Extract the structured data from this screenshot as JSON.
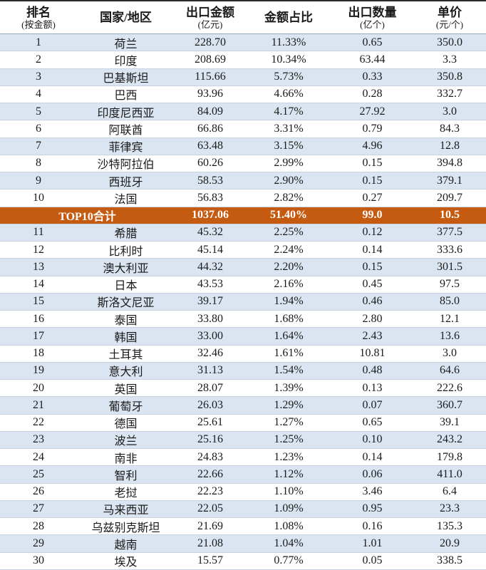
{
  "table": {
    "header": [
      {
        "title": "排名",
        "unit": "(按金额)"
      },
      {
        "title": "国家/地区"
      },
      {
        "title": "出口金额",
        "unit": "(亿元)"
      },
      {
        "title": "金额占比"
      },
      {
        "title": "出口数量",
        "unit": "(亿个)"
      },
      {
        "title": "单价",
        "unit": "(元/个)"
      }
    ],
    "rows": [
      [
        "1",
        "荷兰",
        "228.70",
        "11.33%",
        "0.65",
        "350.0"
      ],
      [
        "2",
        "印度",
        "208.69",
        "10.34%",
        "63.44",
        "3.3"
      ],
      [
        "3",
        "巴基斯坦",
        "115.66",
        "5.73%",
        "0.33",
        "350.8"
      ],
      [
        "4",
        "巴西",
        "93.96",
        "4.66%",
        "0.28",
        "332.7"
      ],
      [
        "5",
        "印度尼西亚",
        "84.09",
        "4.17%",
        "27.92",
        "3.0"
      ],
      [
        "6",
        "阿联酋",
        "66.86",
        "3.31%",
        "0.79",
        "84.3"
      ],
      [
        "7",
        "菲律宾",
        "63.48",
        "3.15%",
        "4.96",
        "12.8"
      ],
      [
        "8",
        "沙特阿拉伯",
        "60.26",
        "2.99%",
        "0.15",
        "394.8"
      ],
      [
        "9",
        "西班牙",
        "58.53",
        "2.90%",
        "0.15",
        "379.1"
      ],
      [
        "10",
        "法国",
        "56.83",
        "2.82%",
        "0.27",
        "209.7"
      ],
      [
        "11",
        "希腊",
        "45.32",
        "2.25%",
        "0.12",
        "377.5"
      ],
      [
        "12",
        "比利时",
        "45.14",
        "2.24%",
        "0.14",
        "333.6"
      ],
      [
        "13",
        "澳大利亚",
        "44.32",
        "2.20%",
        "0.15",
        "301.5"
      ],
      [
        "14",
        "日本",
        "43.53",
        "2.16%",
        "0.45",
        "97.5"
      ],
      [
        "15",
        "斯洛文尼亚",
        "39.17",
        "1.94%",
        "0.46",
        "85.0"
      ],
      [
        "16",
        "泰国",
        "33.80",
        "1.68%",
        "2.80",
        "12.1"
      ],
      [
        "17",
        "韩国",
        "33.00",
        "1.64%",
        "2.43",
        "13.6"
      ],
      [
        "18",
        "土耳其",
        "32.46",
        "1.61%",
        "10.81",
        "3.0"
      ],
      [
        "19",
        "意大利",
        "31.13",
        "1.54%",
        "0.48",
        "64.6"
      ],
      [
        "20",
        "英国",
        "28.07",
        "1.39%",
        "0.13",
        "222.6"
      ],
      [
        "21",
        "葡萄牙",
        "26.03",
        "1.29%",
        "0.07",
        "360.7"
      ],
      [
        "22",
        "德国",
        "25.61",
        "1.27%",
        "0.65",
        "39.1"
      ],
      [
        "23",
        "波兰",
        "25.16",
        "1.25%",
        "0.10",
        "243.2"
      ],
      [
        "24",
        "南非",
        "24.83",
        "1.23%",
        "0.14",
        "179.8"
      ],
      [
        "25",
        "智利",
        "22.66",
        "1.12%",
        "0.06",
        "411.0"
      ],
      [
        "26",
        "老挝",
        "22.23",
        "1.10%",
        "3.46",
        "6.4"
      ],
      [
        "27",
        "马来西亚",
        "22.05",
        "1.09%",
        "0.95",
        "23.3"
      ],
      [
        "28",
        "乌兹别克斯坦",
        "21.69",
        "1.08%",
        "0.16",
        "135.3"
      ],
      [
        "29",
        "越南",
        "21.08",
        "1.04%",
        "1.01",
        "20.9"
      ],
      [
        "30",
        "埃及",
        "15.57",
        "0.77%",
        "0.05",
        "338.5"
      ]
    ],
    "total": {
      "label": "TOP10合计",
      "values": [
        "1037.06",
        "51.40%",
        "99.0",
        "10.5"
      ]
    }
  }
}
